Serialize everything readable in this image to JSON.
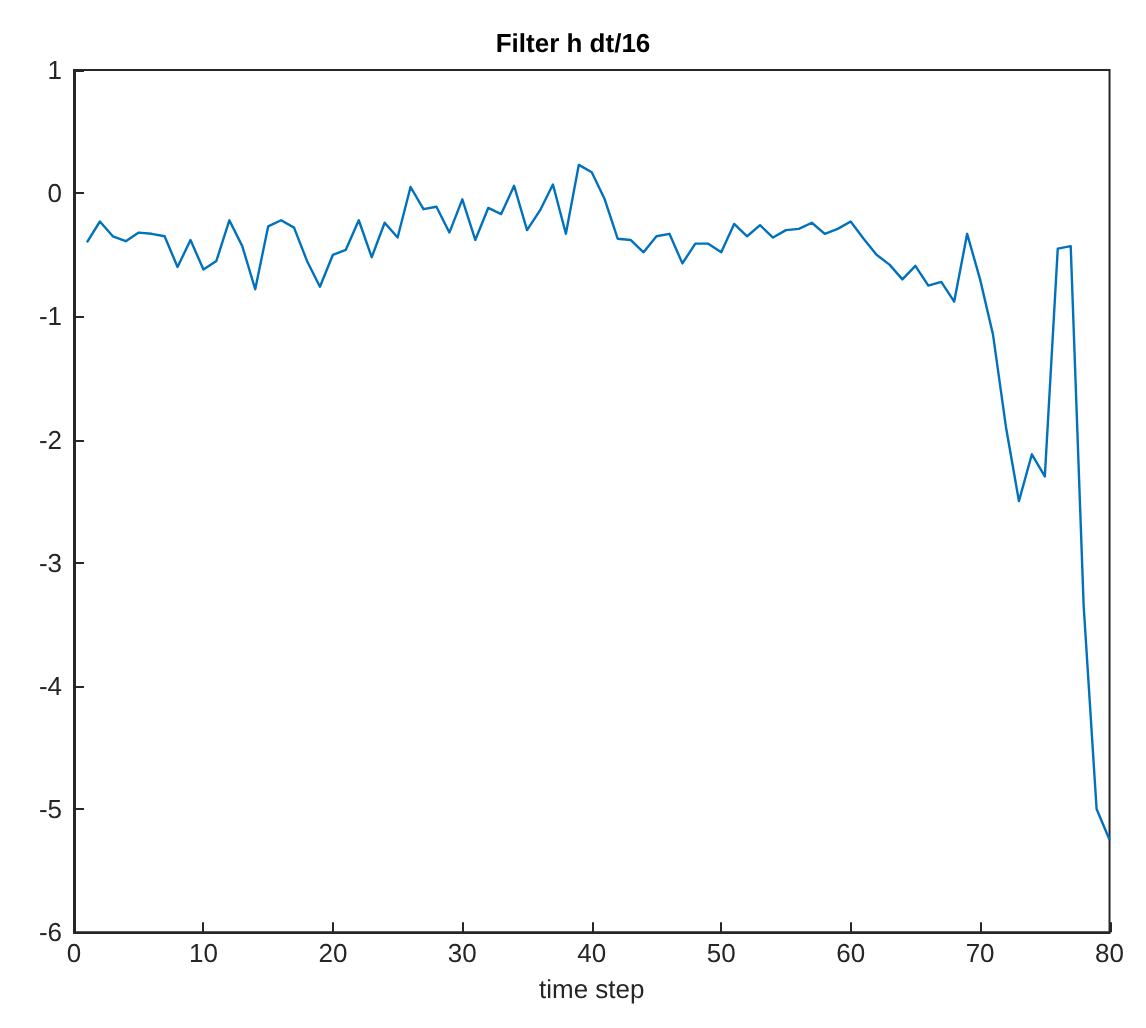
{
  "chart_data": {
    "type": "line",
    "title": "Filter h dt/16",
    "xlabel": "time step",
    "x": [
      1,
      2,
      3,
      4,
      5,
      6,
      7,
      8,
      9,
      10,
      11,
      12,
      13,
      14,
      15,
      16,
      17,
      18,
      19,
      20,
      21,
      22,
      23,
      24,
      25,
      26,
      27,
      28,
      29,
      30,
      31,
      32,
      33,
      34,
      35,
      36,
      37,
      38,
      39,
      40,
      41,
      42,
      43,
      44,
      45,
      46,
      47,
      48,
      49,
      50,
      51,
      52,
      53,
      54,
      55,
      56,
      57,
      58,
      59,
      60,
      61,
      62,
      63,
      64,
      65,
      66,
      67,
      68,
      69,
      70,
      71,
      72,
      73,
      74,
      75,
      76,
      77,
      78,
      79,
      80
    ],
    "series": [
      {
        "color": "#0072bd",
        "values": [
          -0.4,
          -0.23,
          -0.35,
          -0.39,
          -0.32,
          -0.33,
          -0.35,
          -0.6,
          -0.38,
          -0.62,
          -0.55,
          -0.22,
          -0.43,
          -0.78,
          -0.27,
          -0.22,
          -0.28,
          -0.55,
          -0.76,
          -0.5,
          -0.46,
          -0.22,
          -0.52,
          -0.24,
          -0.36,
          0.05,
          -0.13,
          -0.11,
          -0.32,
          -0.05,
          -0.38,
          -0.12,
          -0.17,
          0.06,
          -0.3,
          -0.14,
          0.07,
          -0.33,
          0.23,
          0.17,
          -0.05,
          -0.37,
          -0.38,
          -0.48,
          -0.35,
          -0.33,
          -0.57,
          -0.41,
          -0.41,
          -0.48,
          -0.25,
          -0.35,
          -0.26,
          -0.36,
          -0.3,
          -0.29,
          -0.24,
          -0.33,
          -0.29,
          -0.23,
          -0.37,
          -0.5,
          -0.58,
          -0.7,
          -0.59,
          -0.75,
          -0.72,
          -0.88,
          -0.33,
          -0.7,
          -1.15,
          -1.9,
          -2.5,
          -2.12,
          -2.3,
          -0.45,
          -0.43,
          -3.35,
          -5.0,
          -5.25
        ]
      }
    ],
    "xlim": [
      0,
      80
    ],
    "xticks": [
      0,
      10,
      20,
      30,
      40,
      50,
      60,
      70,
      80
    ],
    "ylim": [
      -6,
      1
    ],
    "yticks": [
      -6,
      -5,
      -4,
      -3,
      -2,
      -1,
      0,
      1
    ],
    "grid": false,
    "marker": "none",
    "line_style": "solid"
  }
}
